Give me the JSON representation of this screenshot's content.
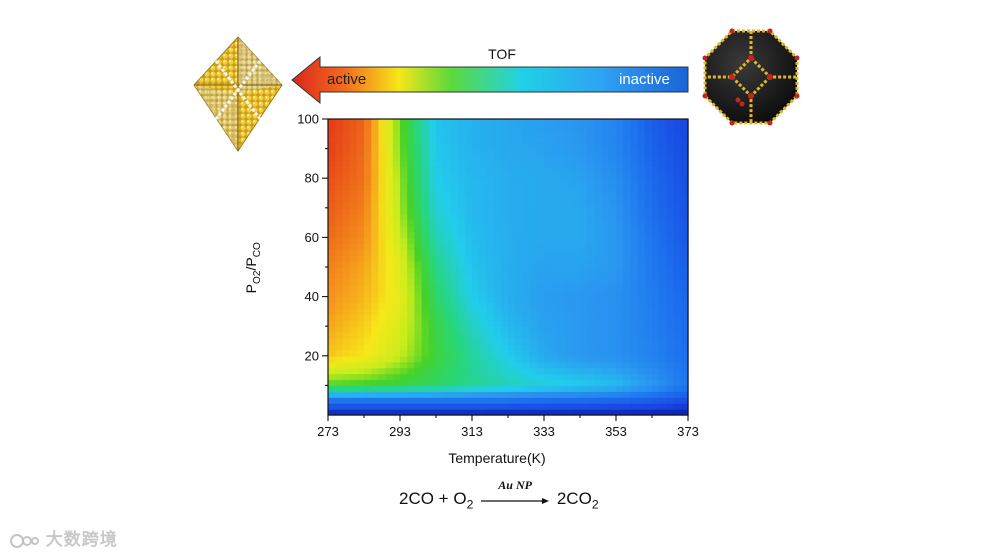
{
  "chart_data": {
    "type": "heatmap",
    "title": "",
    "xlabel": "Temperature(K)",
    "ylabel": {
      "base": "P",
      "num_sub": "O2",
      "sep": "/P",
      "den_sub": "CO"
    },
    "xlim": [
      273,
      373
    ],
    "ylim": [
      0,
      100
    ],
    "xticks": [
      "273",
      "293",
      "313",
      "333",
      "353",
      "373"
    ],
    "yticks": [
      "20",
      "40",
      "60",
      "80",
      "100"
    ],
    "x": [
      273,
      283,
      293,
      303,
      313,
      323,
      333,
      343,
      353,
      363,
      373
    ],
    "y": [
      0,
      5,
      10,
      20,
      30,
      40,
      50,
      60,
      70,
      80,
      90,
      100
    ],
    "z": [
      [
        0.0,
        0.0,
        0.0,
        0.0,
        0.0,
        0.0,
        0.0,
        0.0,
        0.0,
        0.0,
        0.0
      ],
      [
        0.2,
        0.2,
        0.2,
        0.2,
        0.2,
        0.19,
        0.18,
        0.17,
        0.16,
        0.14,
        0.1
      ],
      [
        0.58,
        0.57,
        0.55,
        0.52,
        0.48,
        0.45,
        0.42,
        0.4,
        0.37,
        0.3,
        0.2
      ],
      [
        0.78,
        0.74,
        0.66,
        0.56,
        0.47,
        0.4,
        0.33,
        0.3,
        0.28,
        0.24,
        0.18
      ],
      [
        0.82,
        0.77,
        0.69,
        0.55,
        0.44,
        0.36,
        0.32,
        0.3,
        0.28,
        0.23,
        0.17
      ],
      [
        0.85,
        0.8,
        0.71,
        0.52,
        0.4,
        0.34,
        0.31,
        0.3,
        0.28,
        0.22,
        0.16
      ],
      [
        0.87,
        0.82,
        0.7,
        0.49,
        0.38,
        0.34,
        0.32,
        0.32,
        0.3,
        0.21,
        0.14
      ],
      [
        0.9,
        0.85,
        0.67,
        0.45,
        0.37,
        0.34,
        0.33,
        0.33,
        0.3,
        0.2,
        0.12
      ],
      [
        0.92,
        0.87,
        0.64,
        0.42,
        0.36,
        0.34,
        0.33,
        0.33,
        0.29,
        0.18,
        0.11
      ],
      [
        0.94,
        0.89,
        0.63,
        0.4,
        0.36,
        0.34,
        0.33,
        0.32,
        0.27,
        0.17,
        0.1
      ],
      [
        0.96,
        0.9,
        0.61,
        0.39,
        0.35,
        0.33,
        0.32,
        0.3,
        0.25,
        0.15,
        0.09
      ],
      [
        0.97,
        0.91,
        0.6,
        0.38,
        0.35,
        0.33,
        0.31,
        0.29,
        0.24,
        0.14,
        0.08
      ]
    ],
    "colorbar": {
      "label": "TOF",
      "low_label": "inactive",
      "high_label": "active"
    }
  },
  "reaction": {
    "lhs_main": "2CO + O",
    "lhs_sub": "2",
    "catalyst": "Au NP",
    "rhs_main": "2CO",
    "rhs_sub": "2"
  },
  "images": {
    "left": "gold-octahedron-nanoparticle",
    "right": "dark-octahedron-nanoparticle"
  },
  "watermark": "大数跨境",
  "colors": {
    "axis": "#111111",
    "gold": "#e2b52a",
    "dark": "#151515",
    "red_atom": "#c0271d"
  }
}
